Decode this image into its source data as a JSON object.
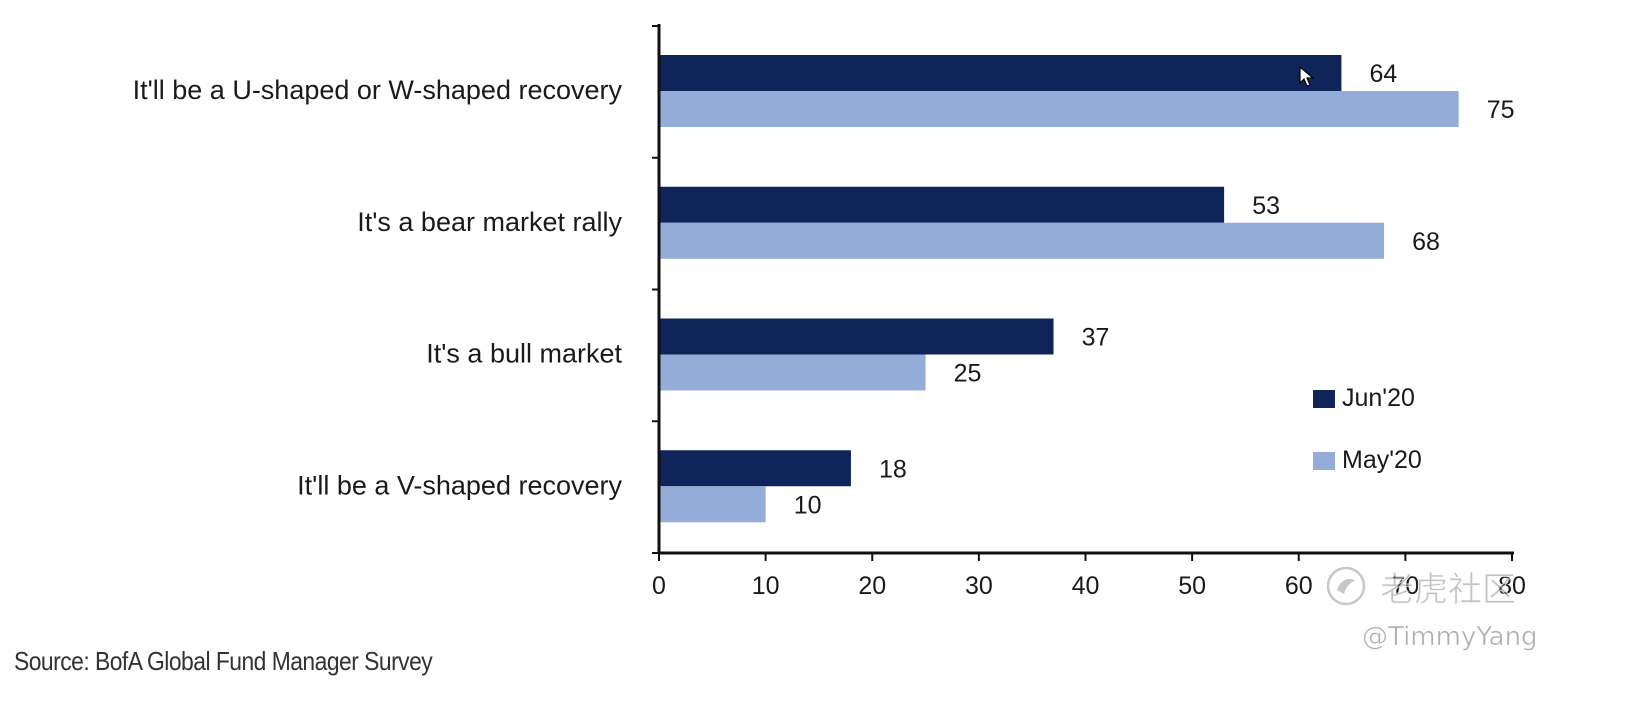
{
  "chart_data": {
    "type": "bar",
    "orientation": "horizontal",
    "categories": [
      "It'll be a U-shaped or W-shaped recovery",
      "It's a bear market rally",
      "It's a bull market",
      "It'll be a V-shaped recovery"
    ],
    "series": [
      {
        "name": "Jun'20",
        "values": [
          64,
          53,
          37,
          18
        ],
        "color": "#0f2459"
      },
      {
        "name": "May'20",
        "values": [
          75,
          68,
          25,
          10
        ],
        "color": "#93acd8"
      }
    ],
    "xticks": [
      0,
      10,
      20,
      30,
      40,
      50,
      60,
      70,
      80
    ],
    "xlim": [
      0,
      80
    ],
    "grid": false,
    "legend_position": "right"
  },
  "source": "Source:  BofA Global Fund Manager Survey",
  "watermark": {
    "text": "老虎社区",
    "user": "@TimmyYang"
  }
}
